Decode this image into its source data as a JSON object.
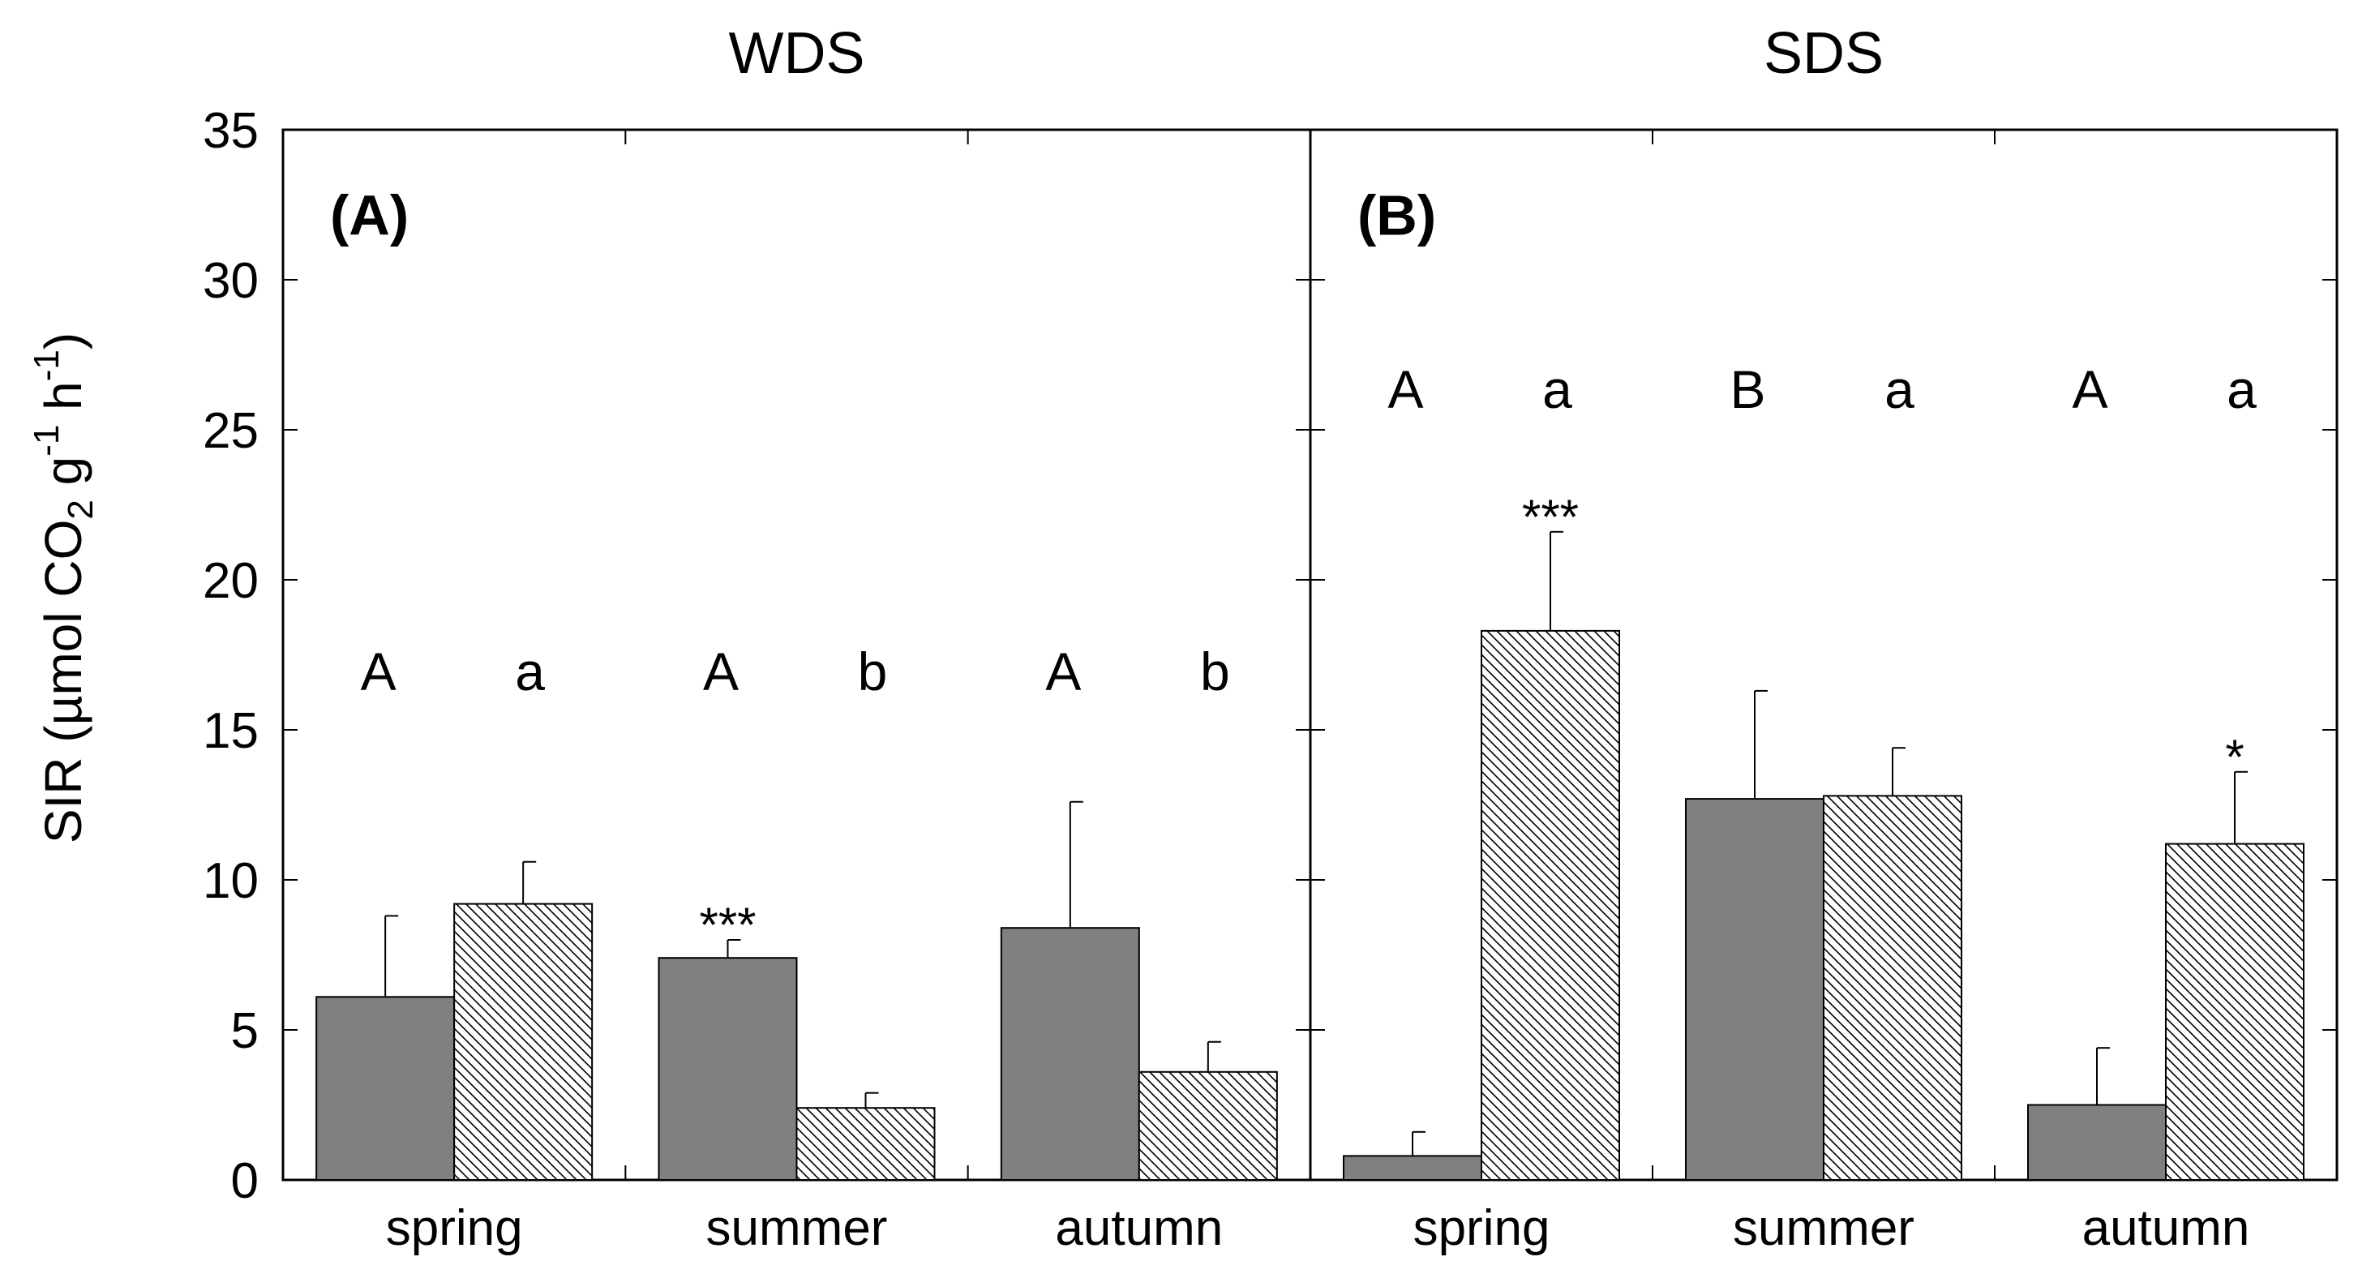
{
  "chart_data": {
    "type": "bar",
    "ylabel_parts": {
      "main": "SIR (µmol CO",
      "sub": "2",
      "g": " g",
      "sup1": "-1",
      "h": " h",
      "sup2": "-1",
      "close": ")"
    },
    "ylim": [
      0,
      35
    ],
    "yticks": [
      0,
      5,
      10,
      15,
      20,
      25,
      30,
      35
    ],
    "categories": [
      "spring",
      "summer",
      "autumn"
    ],
    "series_styles": [
      "solid-dark-gray",
      "diagonal-hatch"
    ],
    "colors": {
      "dark_bar": "#808080",
      "hatch_line": "#000000",
      "axis": "#000000"
    },
    "panels": [
      {
        "title": "WDS",
        "label": "(A)",
        "bars": [
          [
            {
              "value": 6.1,
              "err": 2.7
            },
            {
              "value": 9.2,
              "err": 1.4
            }
          ],
          [
            {
              "value": 7.4,
              "err": 0.6
            },
            {
              "value": 2.4,
              "err": 0.5
            }
          ],
          [
            {
              "value": 8.4,
              "err": 4.2
            },
            {
              "value": 3.6,
              "err": 1.0
            }
          ]
        ],
        "letters": [
          [
            "A",
            "a"
          ],
          [
            "A",
            "b"
          ],
          [
            "A",
            "b"
          ]
        ],
        "letter_y": 17,
        "stars": [
          {
            "category": 1,
            "bar": 0,
            "text": "***"
          }
        ]
      },
      {
        "title": "SDS",
        "label": "(B)",
        "bars": [
          [
            {
              "value": 0.8,
              "err": 0.8
            },
            {
              "value": 18.3,
              "err": 3.3
            }
          ],
          [
            {
              "value": 12.7,
              "err": 3.6
            },
            {
              "value": 12.8,
              "err": 1.6
            }
          ],
          [
            {
              "value": 2.5,
              "err": 1.9
            },
            {
              "value": 11.2,
              "err": 2.4
            }
          ]
        ],
        "letters": [
          [
            "A",
            "a"
          ],
          [
            "B",
            "a"
          ],
          [
            "A",
            "a"
          ]
        ],
        "letter_y": 26.4,
        "stars": [
          {
            "category": 0,
            "bar": 1,
            "text": "***"
          },
          {
            "category": 2,
            "bar": 1,
            "text": "*"
          }
        ]
      }
    ]
  }
}
